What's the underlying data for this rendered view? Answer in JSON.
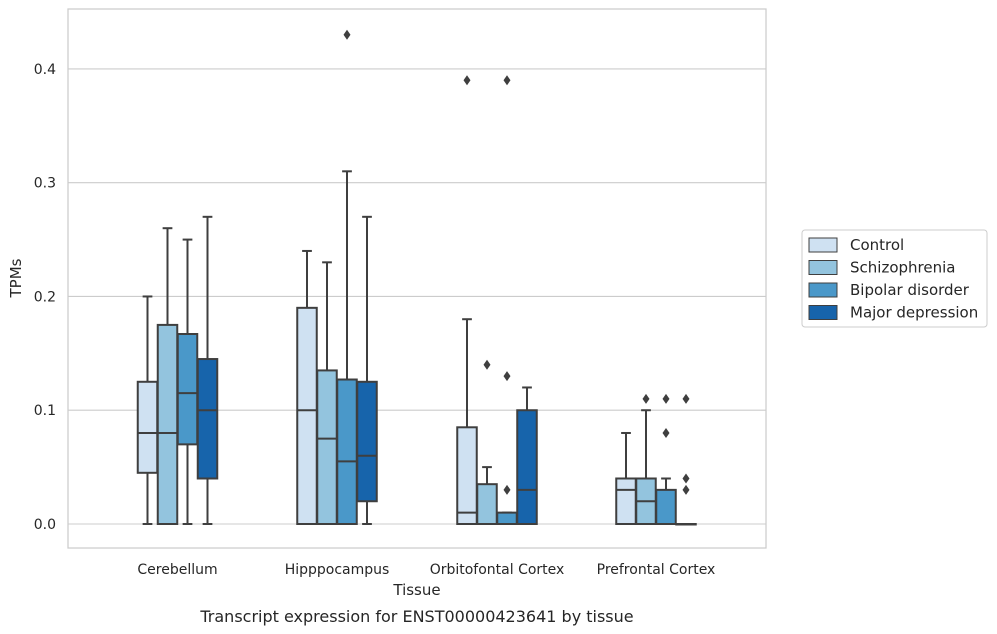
{
  "chart_data": {
    "type": "box",
    "title": "",
    "caption": "Transcript expression for ENST00000423641 by tissue",
    "xlabel": "Tissue",
    "ylabel": "TPMs",
    "ylim": [
      -0.021,
      0.453
    ],
    "yticks": [
      0.0,
      0.1,
      0.2,
      0.3,
      0.4
    ],
    "ytick_labels": [
      "0.0",
      "0.1",
      "0.2",
      "0.3",
      "0.4"
    ],
    "grid": "horizontal",
    "legend_position": "right",
    "categories": [
      "Cerebellum",
      "Hipppocampus",
      "Orbitofontal Cortex",
      "Prefrontal Cortex"
    ],
    "series": [
      {
        "name": "Control",
        "color": "#cfe1f2",
        "boxes": [
          {
            "whisker_low": 0.0,
            "q1": 0.045,
            "median": 0.08,
            "q3": 0.125,
            "whisker_high": 0.2,
            "outliers": []
          },
          {
            "whisker_low": 0.0,
            "q1": 0.0,
            "median": 0.1,
            "q3": 0.19,
            "whisker_high": 0.24,
            "outliers": []
          },
          {
            "whisker_low": 0.0,
            "q1": 0.0,
            "median": 0.01,
            "q3": 0.085,
            "whisker_high": 0.18,
            "outliers": [
              0.39
            ]
          },
          {
            "whisker_low": 0.0,
            "q1": 0.0,
            "median": 0.03,
            "q3": 0.04,
            "whisker_high": 0.08,
            "outliers": []
          }
        ]
      },
      {
        "name": "Schizophrenia",
        "color": "#93c4de",
        "boxes": [
          {
            "whisker_low": 0.0,
            "q1": 0.0,
            "median": 0.08,
            "q3": 0.175,
            "whisker_high": 0.26,
            "outliers": []
          },
          {
            "whisker_low": 0.0,
            "q1": 0.0,
            "median": 0.075,
            "q3": 0.135,
            "whisker_high": 0.23,
            "outliers": []
          },
          {
            "whisker_low": 0.0,
            "q1": 0.0,
            "median": 0.0,
            "q3": 0.035,
            "whisker_high": 0.05,
            "outliers": [
              0.14
            ]
          },
          {
            "whisker_low": 0.0,
            "q1": 0.0,
            "median": 0.02,
            "q3": 0.04,
            "whisker_high": 0.1,
            "outliers": [
              0.11
            ]
          }
        ]
      },
      {
        "name": "Bipolar disorder",
        "color": "#4a98c9",
        "boxes": [
          {
            "whisker_low": 0.0,
            "q1": 0.07,
            "median": 0.115,
            "q3": 0.167,
            "whisker_high": 0.25,
            "outliers": []
          },
          {
            "whisker_low": 0.0,
            "q1": 0.0,
            "median": 0.055,
            "q3": 0.127,
            "whisker_high": 0.31,
            "outliers": [
              0.43
            ]
          },
          {
            "whisker_low": 0.0,
            "q1": 0.0,
            "median": 0.0,
            "q3": 0.01,
            "whisker_high": 0.01,
            "outliers": [
              0.03,
              0.13,
              0.39
            ]
          },
          {
            "whisker_low": 0.0,
            "q1": 0.0,
            "median": 0.0,
            "q3": 0.03,
            "whisker_high": 0.04,
            "outliers": [
              0.08,
              0.11
            ]
          }
        ]
      },
      {
        "name": "Major depression",
        "color": "#1764ab",
        "boxes": [
          {
            "whisker_low": 0.0,
            "q1": 0.04,
            "median": 0.1,
            "q3": 0.145,
            "whisker_high": 0.27,
            "outliers": []
          },
          {
            "whisker_low": 0.0,
            "q1": 0.02,
            "median": 0.06,
            "q3": 0.125,
            "whisker_high": 0.27,
            "outliers": []
          },
          {
            "whisker_low": 0.0,
            "q1": 0.0,
            "median": 0.03,
            "q3": 0.1,
            "whisker_high": 0.12,
            "outliers": []
          },
          {
            "whisker_low": 0.0,
            "q1": 0.0,
            "median": 0.0,
            "q3": 0.0,
            "whisker_high": 0.0,
            "outliers": [
              0.03,
              0.04,
              0.11
            ]
          }
        ]
      }
    ]
  }
}
